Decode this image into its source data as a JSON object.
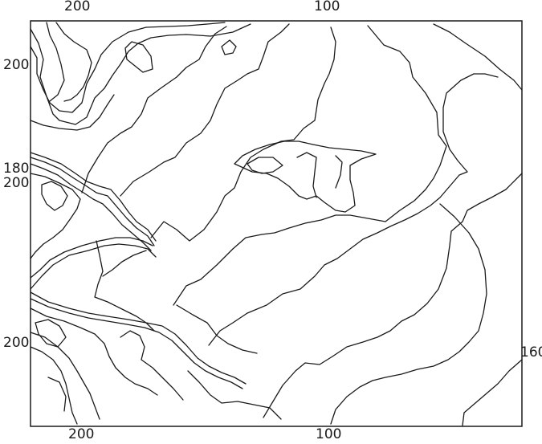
{
  "map": {
    "labels": {
      "top_left": "200",
      "top_center": "100",
      "bottom_left": "200",
      "bottom_center": "100",
      "left_upper": "200",
      "left_mid_a": "180",
      "left_mid_b": "200",
      "left_lower": "200",
      "right_lower": "160"
    },
    "line_color": "#1a1a1a",
    "background_color": "#ffffff"
  }
}
